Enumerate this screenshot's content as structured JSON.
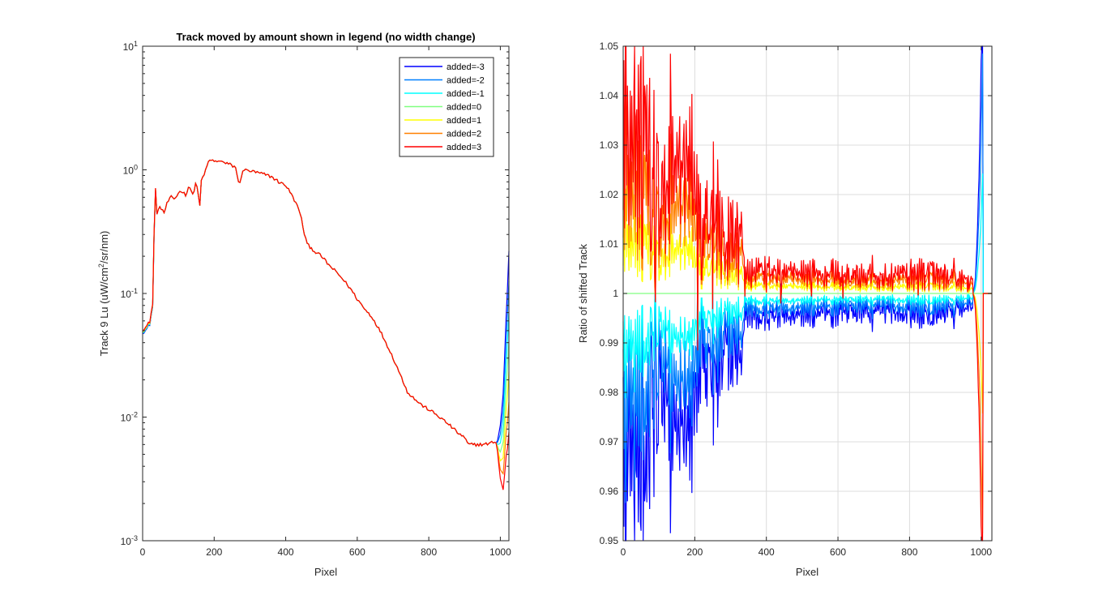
{
  "chart_data": [
    {
      "type": "line",
      "title": "Track moved by amount shown in legend (no width change)",
      "xlabel": "Pixel",
      "ylabel_pre": "Track 9 Lu (uW/cm",
      "ylabel_sup": "2",
      "ylabel_post": "/sr/nm)",
      "xlim": [
        0,
        1024
      ],
      "ylim": [
        0.001,
        10
      ],
      "yscale": "log",
      "grid": false,
      "legend": "top-right",
      "xticks": [
        0,
        200,
        400,
        600,
        800,
        1000
      ],
      "yticks": [
        {
          "value": 0.001,
          "base": "10",
          "exp": "-3"
        },
        {
          "value": 0.01,
          "base": "10",
          "exp": "-2"
        },
        {
          "value": 0.1,
          "base": "10",
          "exp": "-1"
        },
        {
          "value": 1,
          "base": "10",
          "exp": "0"
        },
        {
          "value": 10,
          "base": "10",
          "exp": "1"
        }
      ],
      "base_curve": [
        [
          0,
          0.05
        ],
        [
          10,
          0.052
        ],
        [
          20,
          0.058
        ],
        [
          30,
          0.085
        ],
        [
          33,
          0.4
        ],
        [
          36,
          0.68
        ],
        [
          40,
          0.45
        ],
        [
          50,
          0.5
        ],
        [
          60,
          0.45
        ],
        [
          70,
          0.55
        ],
        [
          80,
          0.6
        ],
        [
          90,
          0.58
        ],
        [
          100,
          0.65
        ],
        [
          110,
          0.68
        ],
        [
          120,
          0.62
        ],
        [
          130,
          0.75
        ],
        [
          140,
          0.62
        ],
        [
          150,
          0.8
        ],
        [
          160,
          0.5
        ],
        [
          165,
          0.9
        ],
        [
          170,
          0.85
        ],
        [
          180,
          1.1
        ],
        [
          190,
          1.2
        ],
        [
          200,
          1.18
        ],
        [
          210,
          1.15
        ],
        [
          220,
          1.2
        ],
        [
          230,
          1.12
        ],
        [
          240,
          1.12
        ],
        [
          250,
          1.08
        ],
        [
          260,
          1.05
        ],
        [
          270,
          0.72
        ],
        [
          280,
          1.0
        ],
        [
          300,
          0.98
        ],
        [
          320,
          0.95
        ],
        [
          340,
          0.92
        ],
        [
          360,
          0.88
        ],
        [
          380,
          0.8
        ],
        [
          400,
          0.75
        ],
        [
          420,
          0.6
        ],
        [
          440,
          0.45
        ],
        [
          450,
          0.32
        ],
        [
          460,
          0.25
        ],
        [
          480,
          0.22
        ],
        [
          500,
          0.2
        ],
        [
          520,
          0.17
        ],
        [
          540,
          0.15
        ],
        [
          560,
          0.13
        ],
        [
          580,
          0.11
        ],
        [
          600,
          0.09
        ],
        [
          620,
          0.075
        ],
        [
          640,
          0.065
        ],
        [
          660,
          0.052
        ],
        [
          680,
          0.04
        ],
        [
          700,
          0.03
        ],
        [
          720,
          0.022
        ],
        [
          740,
          0.016
        ],
        [
          760,
          0.014
        ],
        [
          780,
          0.0125
        ],
        [
          800,
          0.0115
        ],
        [
          820,
          0.0105
        ],
        [
          840,
          0.0095
        ],
        [
          860,
          0.0085
        ],
        [
          880,
          0.0075
        ],
        [
          900,
          0.0068
        ],
        [
          910,
          0.006
        ],
        [
          930,
          0.006
        ],
        [
          950,
          0.006
        ],
        [
          970,
          0.0061
        ],
        [
          985,
          0.0064
        ],
        [
          1000,
          0.0052
        ],
        [
          1010,
          0.0065
        ],
        [
          1020,
          0.025
        ],
        [
          1024,
          0.04
        ]
      ],
      "series": [
        {
          "name": "added=-3",
          "shift": -3,
          "color": "#0000ff"
        },
        {
          "name": "added=-2",
          "shift": -2,
          "color": "#0080ff"
        },
        {
          "name": "added=-1",
          "shift": -1,
          "color": "#00ffff"
        },
        {
          "name": "added=0",
          "shift": 0,
          "color": "#80ff80"
        },
        {
          "name": "added=1",
          "shift": 1,
          "color": "#ffff00"
        },
        {
          "name": "added=2",
          "shift": 2,
          "color": "#ff8000"
        },
        {
          "name": "added=3",
          "shift": 3,
          "color": "#ff0000"
        }
      ]
    },
    {
      "type": "line",
      "title": "",
      "xlabel": "Pixel",
      "ylabel": "Ratio of shifted Track",
      "xlim": [
        0,
        1030
      ],
      "ylim": [
        0.95,
        1.05
      ],
      "yscale": "linear",
      "grid": true,
      "xticks": [
        0,
        200,
        400,
        600,
        800,
        1000
      ],
      "yticks": [
        0.95,
        0.96,
        0.97,
        0.98,
        0.99,
        1,
        1.01,
        1.02,
        1.03,
        1.04,
        1.05
      ],
      "ytick_labels": [
        "0.95",
        "0.96",
        "0.97",
        "0.98",
        "0.99",
        "1",
        "1.01",
        "1.02",
        "1.03",
        "1.04",
        "1.05"
      ],
      "amplitude_envelope": [
        [
          0,
          0.06
        ],
        [
          50,
          0.06
        ],
        [
          100,
          0.035
        ],
        [
          170,
          0.045
        ],
        [
          230,
          0.03
        ],
        [
          300,
          0.02
        ],
        [
          330,
          0.02
        ],
        [
          340,
          0.008
        ],
        [
          500,
          0.007
        ],
        [
          700,
          0.006
        ],
        [
          850,
          0.008
        ],
        [
          960,
          0.005
        ],
        [
          990,
          0.004
        ],
        [
          1030,
          0.004
        ]
      ],
      "series": [
        {
          "name": "added=-3",
          "shift": -3,
          "color": "#0000ff"
        },
        {
          "name": "added=-2",
          "shift": -2,
          "color": "#0080ff"
        },
        {
          "name": "added=-1",
          "shift": -1,
          "color": "#00ffff"
        },
        {
          "name": "added=0",
          "shift": 0,
          "color": "#80ff80"
        },
        {
          "name": "added=1",
          "shift": 1,
          "color": "#ffff00"
        },
        {
          "name": "added=2",
          "shift": 2,
          "color": "#ff8000"
        },
        {
          "name": "added=3",
          "shift": 3,
          "color": "#ff0000"
        }
      ]
    }
  ]
}
